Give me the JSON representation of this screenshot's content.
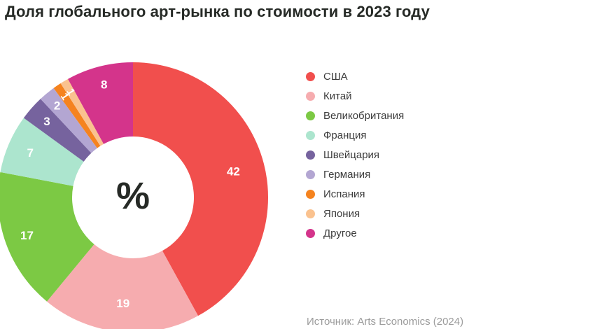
{
  "chart_data": {
    "type": "pie",
    "subtype": "donut",
    "title": "Доля глобального арт-рынка по стоимости в 2023 году",
    "center_label": "%",
    "unit": "%",
    "categories": [
      "США",
      "Китай",
      "Великобритания",
      "Франция",
      "Швейцария",
      "Германия",
      "Испания",
      "Япония",
      "Другое"
    ],
    "values": [
      42,
      19,
      17,
      7,
      3,
      2,
      1,
      1,
      8
    ],
    "colors": [
      "#F14F4D",
      "#F6ACAF",
      "#7CC944",
      "#ACE5CE",
      "#76639E",
      "#B3A6D2",
      "#F5831F",
      "#FAC28F",
      "#D4348B"
    ],
    "legend_position": "right",
    "start_angle_deg": 0,
    "direction": "clockwise",
    "inner_radius_ratio": 0.45,
    "label_radii": [
      148,
      152,
      161,
      160,
      164,
      170,
      174,
      175,
      166
    ],
    "source_note": "Источник: Arts Economics (2024)"
  },
  "colors": {
    "background": "#FFFFFF",
    "title_text": "#262A26",
    "legend_text": "#3C3C3C",
    "source_text": "#9B9B9B",
    "slice_label_text": "#FFFFFF"
  }
}
